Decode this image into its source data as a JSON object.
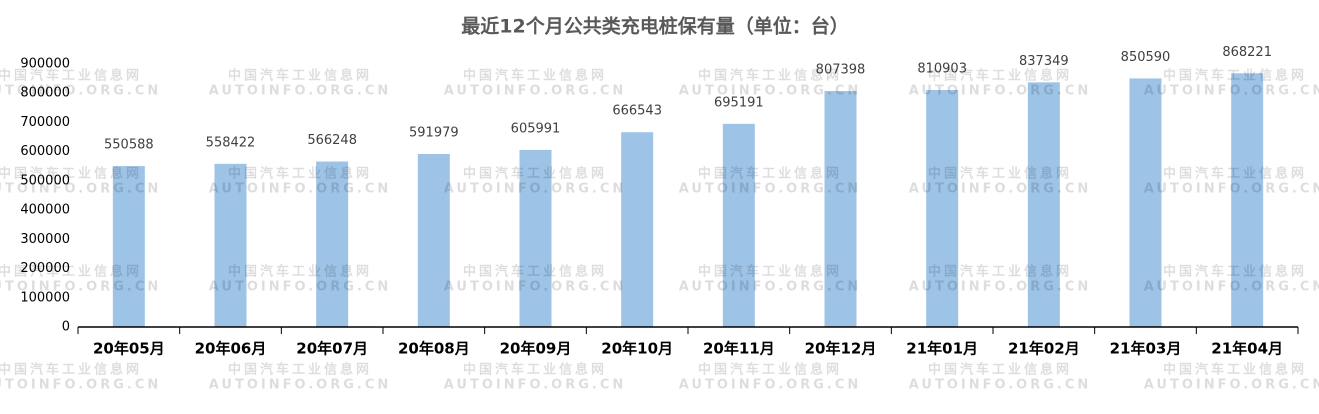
{
  "chart_data": {
    "type": "bar",
    "title": "最近12个月公共类充电桩保有量（单位：台）",
    "categories": [
      "20年05月",
      "20年06月",
      "20年07月",
      "20年08月",
      "20年09月",
      "20年10月",
      "20年11月",
      "20年12月",
      "21年01月",
      "21年02月",
      "21年03月",
      "21年04月"
    ],
    "values": [
      550588,
      558422,
      566248,
      591979,
      605991,
      666543,
      695191,
      807398,
      810903,
      837349,
      850590,
      868221
    ],
    "color": "#9dc3e6",
    "ylim": [
      0,
      900000
    ],
    "yticks": [
      0,
      100000,
      200000,
      300000,
      400000,
      500000,
      600000,
      700000,
      800000,
      900000
    ],
    "grid": false
  },
  "watermark": [
    "中国汽车工业信息网",
    "AUTOINFO.ORG.CN"
  ]
}
